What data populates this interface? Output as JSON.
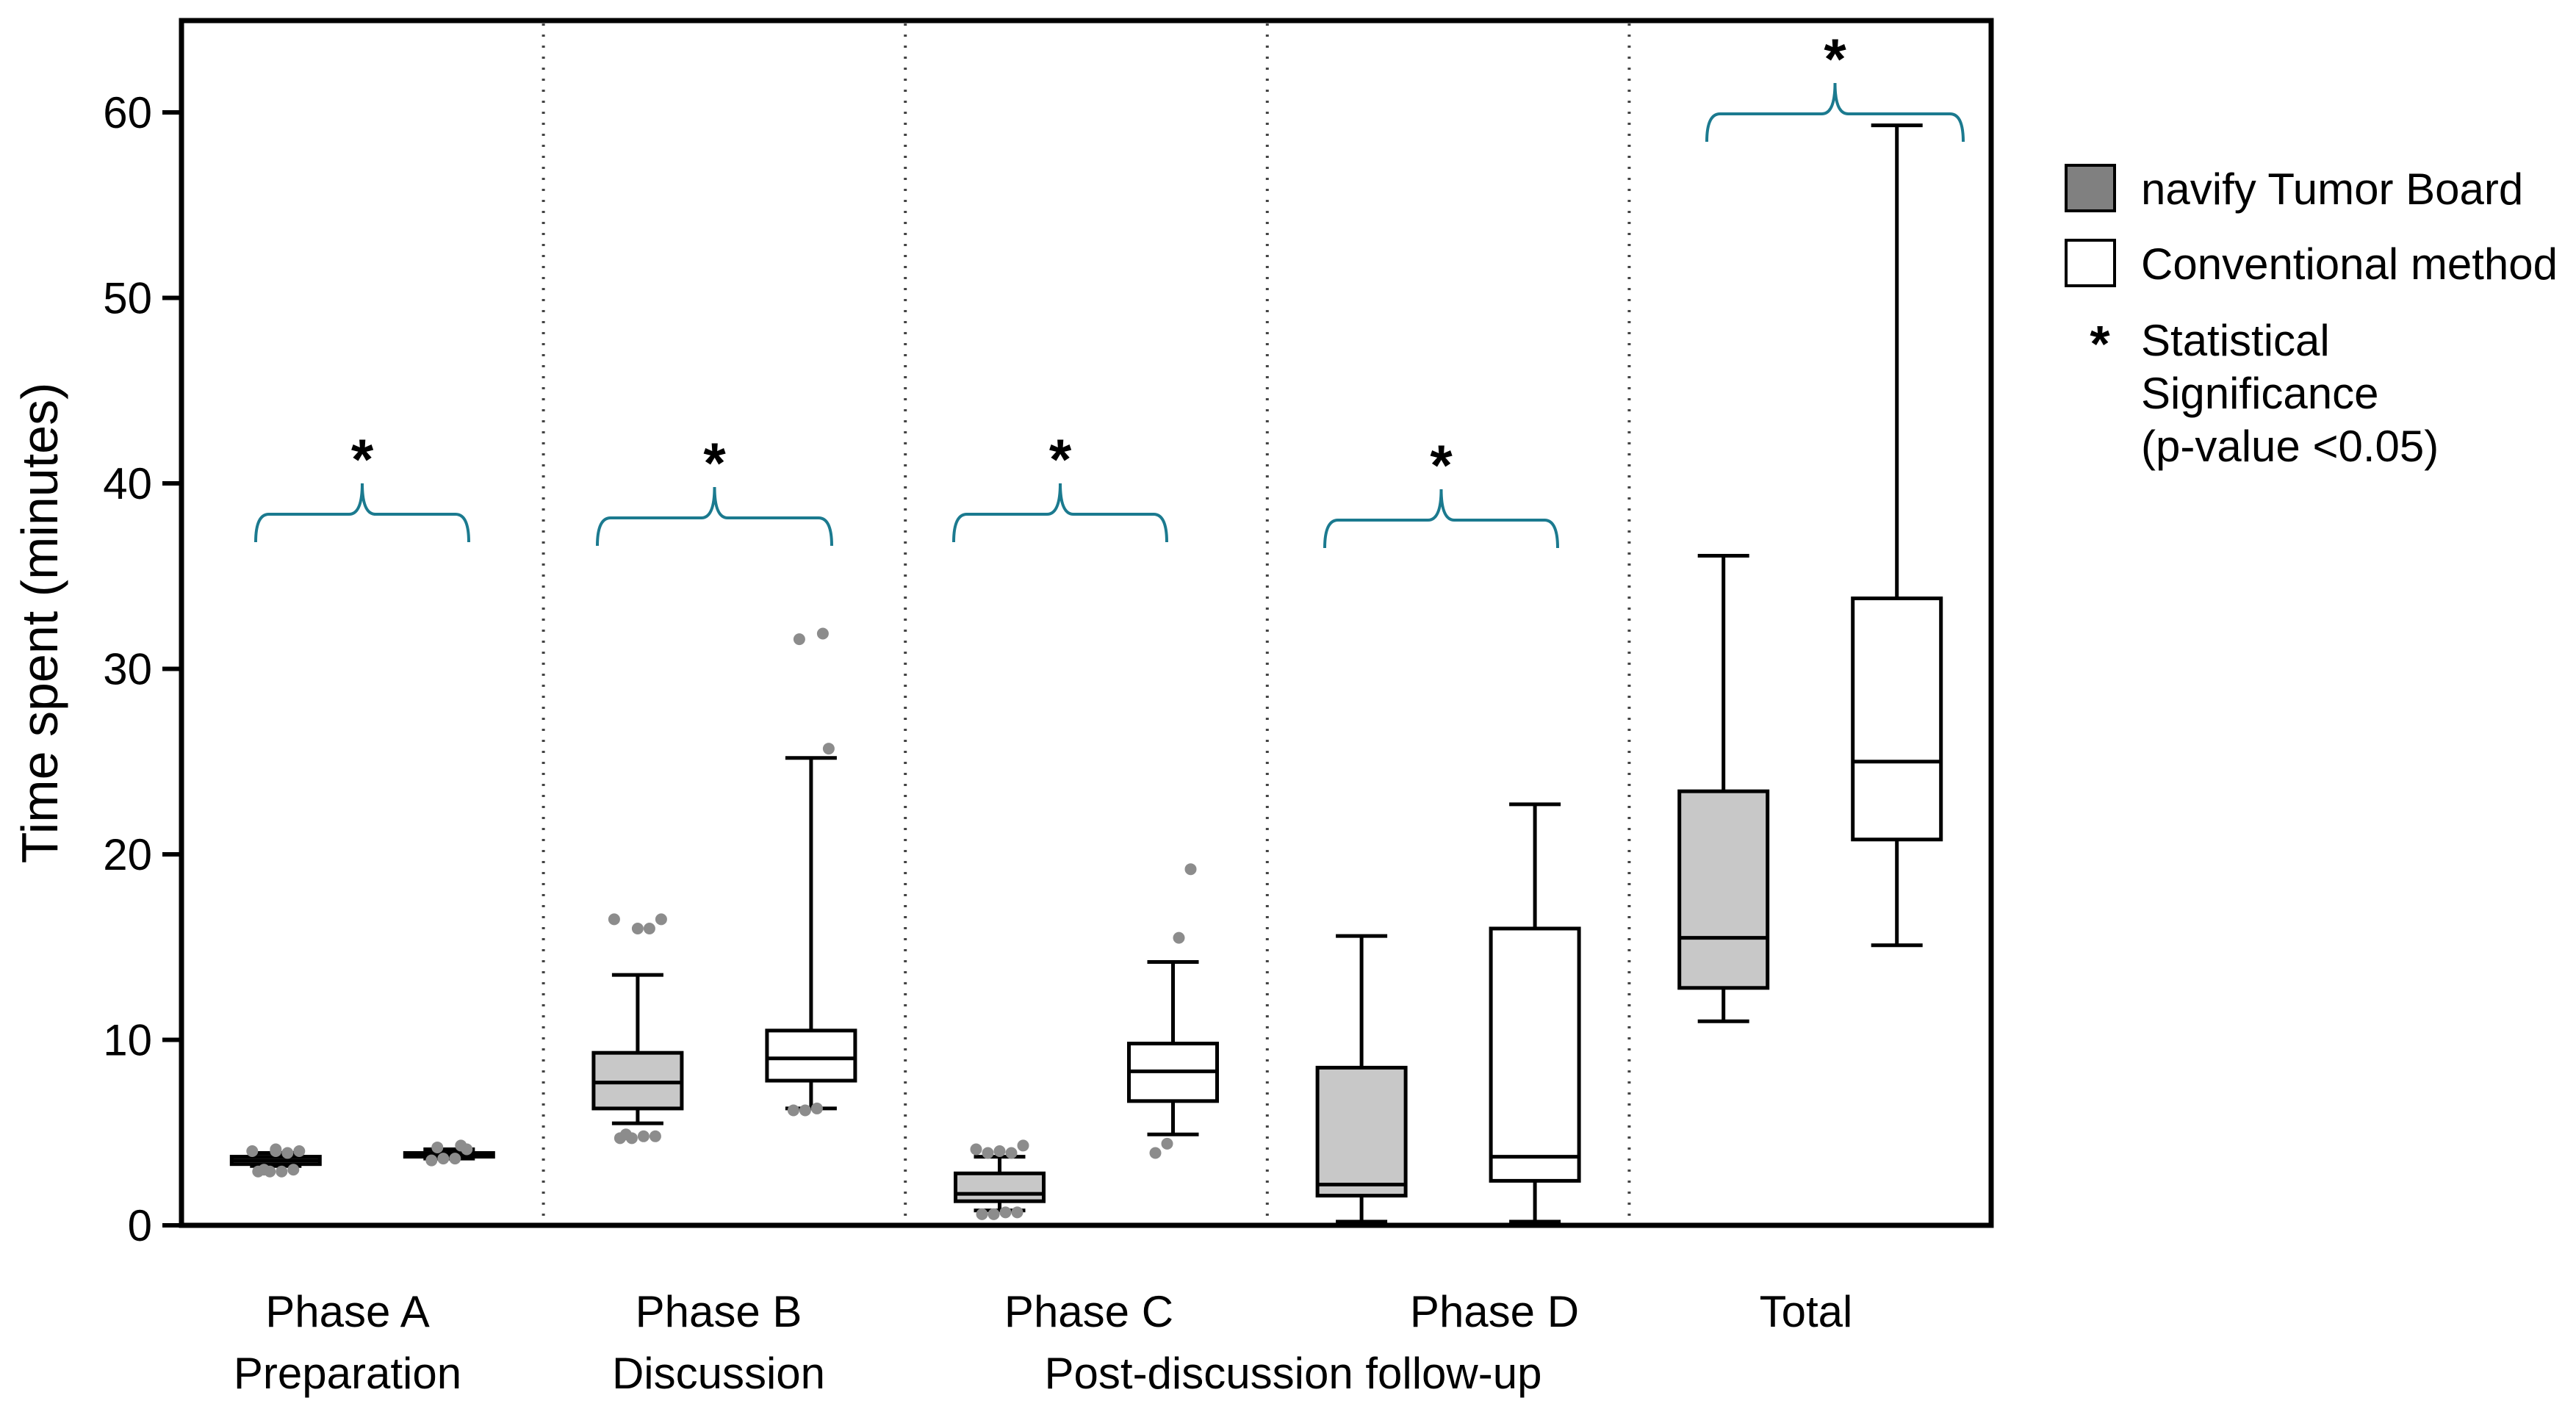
{
  "chart_data": {
    "type": "boxplot",
    "ylabel": "Time spent (minutes)",
    "xlabel": "",
    "ylim": [
      0,
      65
    ],
    "yticks": [
      0,
      10,
      20,
      30,
      40,
      50,
      60
    ],
    "grid": false,
    "legend_position": "right",
    "groups": [
      {
        "label": "Phase A",
        "sublabel": "Preparation",
        "significant": true
      },
      {
        "label": "Phase B",
        "sublabel": "Discussion",
        "significant": true
      },
      {
        "label": "Phase C",
        "sublabel": "",
        "significant": true
      },
      {
        "label": "Phase D",
        "sublabel": "",
        "significant": true
      },
      {
        "label": "Total",
        "sublabel": "",
        "significant": true
      }
    ],
    "shared_sublabel": "Post-discussion follow-up",
    "series": [
      {
        "name": "navify Tumor Board",
        "color": "#c8c8c8",
        "boxes": [
          {
            "min": 3.2,
            "q1": 3.3,
            "median": 3.5,
            "q3": 3.7,
            "max": 3.9,
            "outliers": [
              2.9,
              2.9,
              2.9,
              3.0,
              3.0,
              3.9,
              4.0,
              4.0,
              4.0,
              4.1
            ]
          },
          {
            "min": 5.5,
            "q1": 6.3,
            "median": 7.7,
            "q3": 9.3,
            "max": 13.5,
            "outliers": [
              4.7,
              4.7,
              4.8,
              4.8,
              4.9,
              16.0,
              16.0,
              16.5,
              16.5
            ]
          },
          {
            "min": 0.8,
            "q1": 1.3,
            "median": 1.7,
            "q3": 2.8,
            "max": 3.7,
            "outliers": [
              0.6,
              0.6,
              0.7,
              0.7,
              3.9,
              3.9,
              4.0,
              4.1,
              4.3
            ]
          },
          {
            "min": 0.2,
            "q1": 1.6,
            "median": 2.2,
            "q3": 8.5,
            "max": 15.6,
            "outliers": []
          },
          {
            "min": 11.0,
            "q1": 12.8,
            "median": 15.5,
            "q3": 23.4,
            "max": 36.1,
            "outliers": []
          }
        ]
      },
      {
        "name": "Conventional method",
        "color": "#ffffff",
        "boxes": [
          {
            "min": 3.6,
            "q1": 3.7,
            "median": 3.8,
            "q3": 3.9,
            "max": 4.1,
            "outliers": [
              3.5,
              3.6,
              3.6,
              4.1,
              4.2,
              4.3
            ]
          },
          {
            "min": 6.3,
            "q1": 7.8,
            "median": 9.0,
            "q3": 10.5,
            "max": 25.2,
            "outliers": [
              6.2,
              6.2,
              6.3,
              25.7,
              31.6,
              31.9
            ]
          },
          {
            "min": 4.9,
            "q1": 6.7,
            "median": 8.3,
            "q3": 9.8,
            "max": 14.2,
            "outliers": [
              3.9,
              4.4,
              15.5,
              19.2
            ]
          },
          {
            "min": 0.2,
            "q1": 2.4,
            "median": 3.7,
            "q3": 16.0,
            "max": 22.7,
            "outliers": []
          },
          {
            "min": 15.1,
            "q1": 20.8,
            "median": 25.0,
            "q3": 33.8,
            "max": 59.3,
            "outliers": []
          }
        ]
      }
    ],
    "significance_marker": "*",
    "legend": [
      {
        "symbol": "gray-box",
        "label": "navify Tumor Board"
      },
      {
        "symbol": "white-box",
        "label": "Conventional method"
      },
      {
        "symbol": "*",
        "label_lines": [
          "Statistical",
          "Significance",
          "(p-value <0.05)"
        ]
      }
    ],
    "colors": {
      "bracket": "#1b7a8f",
      "outlier": "#8c8c8c",
      "axis": "#000000"
    }
  }
}
